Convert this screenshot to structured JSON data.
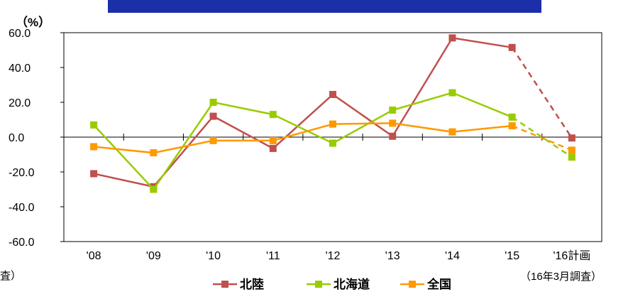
{
  "title": "",
  "chart_data": {
    "type": "line",
    "unit_label": "（%）",
    "categories": [
      "'08",
      "'09",
      "'10",
      "'11",
      "'12",
      "'13",
      "'14",
      "'15",
      "'16計画"
    ],
    "ylim": [
      -60,
      60
    ],
    "y_ticks": [
      "60.0",
      "40.0",
      "20.0",
      "0.0",
      "-20.0",
      "-40.0",
      "-60.0"
    ],
    "plan_note": "（16年3月調査）",
    "left_note": "査）",
    "grid": false,
    "legend_position": "bottom",
    "series": [
      {
        "name": "北陸",
        "color": "#c0504d",
        "marker": "square",
        "values": [
          -21.0,
          -28.5,
          12.0,
          -6.5,
          24.5,
          0.5,
          57.0,
          51.5,
          -0.5
        ]
      },
      {
        "name": "北海道",
        "color": "#99cc00",
        "marker": "square",
        "values": [
          7.0,
          -30.0,
          20.0,
          13.0,
          -3.5,
          15.5,
          25.5,
          11.5,
          -11.5
        ]
      },
      {
        "name": "全国",
        "color": "#ff9900",
        "marker": "square",
        "values": [
          -5.5,
          -9.0,
          -2.0,
          -2.0,
          7.5,
          8.0,
          3.0,
          6.5,
          -7.5
        ]
      }
    ]
  }
}
